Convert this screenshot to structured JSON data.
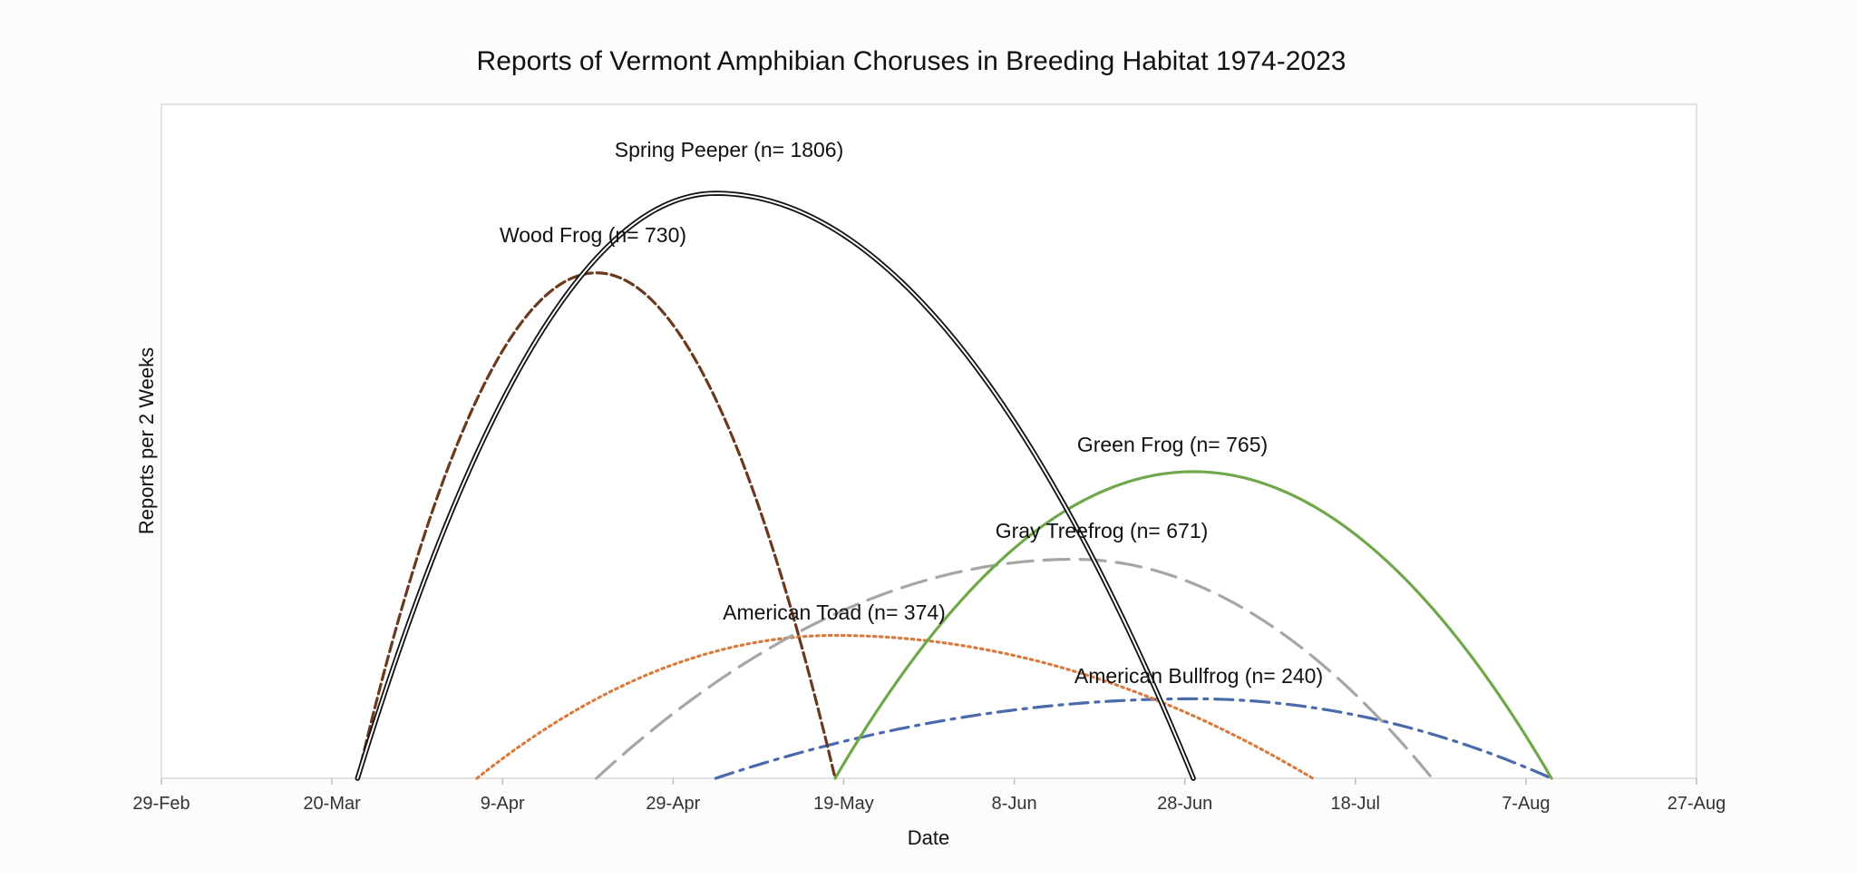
{
  "chart_data": {
    "type": "line",
    "title": "Reports of Vermont Amphibian Choruses in Breeding Habitat 1974-2023",
    "xlabel": "Date",
    "ylabel": "Reports per 2 Weeks",
    "x_ticks": [
      "29-Feb",
      "20-Mar",
      "9-Apr",
      "29-Apr",
      "19-May",
      "8-Jun",
      "28-Jun",
      "18-Jul",
      "7-Aug",
      "27-Aug"
    ],
    "x_tick_days": [
      0,
      20,
      40,
      60,
      80,
      100,
      120,
      140,
      160,
      180
    ],
    "xlim_days": [
      0,
      180
    ],
    "ylim": [
      0,
      100
    ],
    "grid": false,
    "series": [
      {
        "name": "Spring Peeper (n= 1806)",
        "color": "#111111",
        "style": "double",
        "start_day": 23,
        "peak_day": 65,
        "end_day": 121,
        "peak_value": 86.8
      },
      {
        "name": "Wood Frog (n= 730)",
        "color": "#6b3a1e",
        "style": "short-dash",
        "start_day": 23,
        "peak_day": 51,
        "end_day": 79,
        "peak_value": 75
      },
      {
        "name": "Green Frog (n= 765)",
        "color": "#6fa84a",
        "style": "solid",
        "start_day": 79,
        "peak_day": 121,
        "end_day": 163,
        "peak_value": 45.5
      },
      {
        "name": "Gray Treefrog (n= 671)",
        "color": "#a6a6a6",
        "style": "long-dash",
        "start_day": 51,
        "peak_day": 107,
        "end_day": 149,
        "peak_value": 32.5
      },
      {
        "name": "American Toad (n= 374)",
        "color": "#d97b3f",
        "style": "dotted",
        "start_day": 37,
        "peak_day": 79,
        "end_day": 135,
        "peak_value": 21.2
      },
      {
        "name": "American Bullfrog (n= 240)",
        "color": "#4a6aab",
        "style": "dash-dot",
        "start_day": 65,
        "peak_day": 121,
        "end_day": 163,
        "peak_value": 11.8
      }
    ]
  }
}
